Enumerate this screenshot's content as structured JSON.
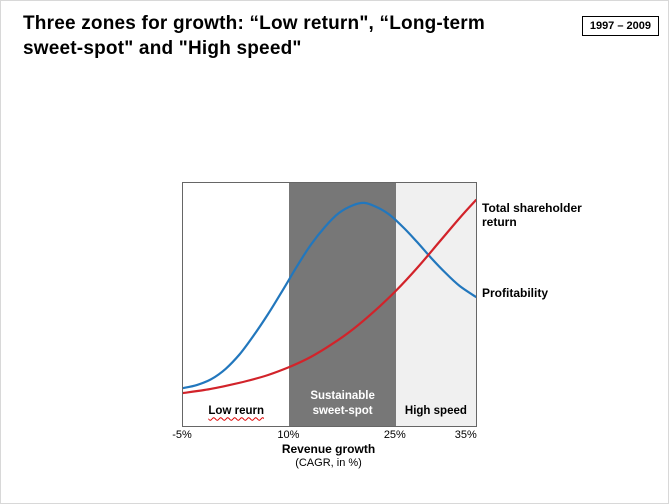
{
  "slide": {
    "title": "Three zones for growth: “Low return\", “Long-term\nsweet-spot\" and \"High speed\"",
    "year_badge": "1997 – 2009"
  },
  "chart_data": {
    "type": "line",
    "title": "Three zones for growth",
    "xlabel": "Revenue growth",
    "xlabel_sub": "(CAGR, in %)",
    "x_range": [
      -5,
      36.3
    ],
    "grid": false,
    "legend": "labels-at-line-ends",
    "x_ticks": [
      {
        "label": "-5%",
        "value": -5
      },
      {
        "label": "10%",
        "value": 10
      },
      {
        "label": "25%",
        "value": 25
      },
      {
        "label": "35%",
        "value": 35
      }
    ],
    "zones": [
      {
        "label": "Low reurn",
        "from": -5,
        "to": 10,
        "fill": "#ffffff",
        "text_color": "#000000",
        "misspelled": true
      },
      {
        "label": "Sustainable sweet-spot",
        "from": 10,
        "to": 25,
        "fill": "#777777",
        "text_color": "#ffffff"
      },
      {
        "label": "High speed",
        "from": 25,
        "to": 36.3,
        "fill": "#f0f0f0",
        "text_color": "#000000"
      }
    ],
    "series": [
      {
        "name": "Profitability",
        "color": "#2277bd",
        "label_dy": 0,
        "x": [
          -5,
          -3,
          -1,
          1,
          3,
          5,
          7,
          9,
          11,
          13,
          15,
          17,
          19,
          20.5,
          22,
          24,
          26,
          28,
          30,
          32,
          34,
          36.3
        ],
        "y": [
          0.156,
          0.169,
          0.193,
          0.235,
          0.296,
          0.374,
          0.461,
          0.556,
          0.654,
          0.745,
          0.819,
          0.877,
          0.909,
          0.918,
          0.905,
          0.872,
          0.819,
          0.757,
          0.691,
          0.63,
          0.576,
          0.531
        ]
      },
      {
        "name": "Total shareholder return",
        "color": "#d2232a",
        "label_dy": 12,
        "x": [
          -5,
          -2,
          1,
          4,
          7,
          10,
          13,
          16,
          19,
          22,
          25,
          28,
          31,
          34,
          36.3
        ],
        "y": [
          0.136,
          0.148,
          0.165,
          0.185,
          0.21,
          0.243,
          0.284,
          0.337,
          0.399,
          0.473,
          0.556,
          0.65,
          0.753,
          0.856,
          0.93
        ]
      }
    ]
  }
}
